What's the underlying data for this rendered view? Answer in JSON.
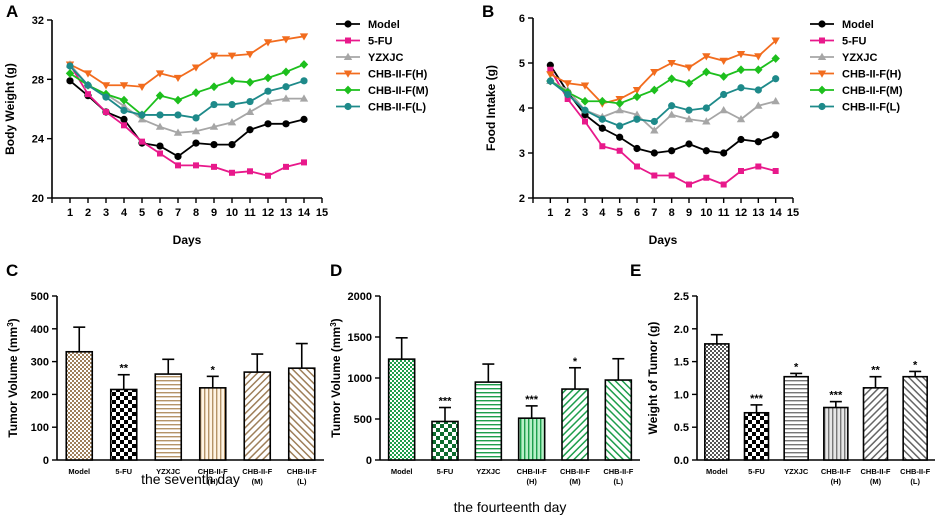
{
  "chart_data": [
    {
      "panel": "A",
      "type": "line",
      "xlabel": "Days",
      "ylabel": "Body Weight (g)",
      "xlim": [
        0,
        15
      ],
      "ylim": [
        20,
        32
      ],
      "xticks": [
        0,
        1,
        2,
        3,
        4,
        5,
        6,
        7,
        8,
        9,
        10,
        11,
        12,
        13,
        14,
        15
      ],
      "yticks": [
        20,
        24,
        28,
        32
      ],
      "x": [
        1,
        2,
        3,
        4,
        5,
        6,
        7,
        8,
        9,
        10,
        11,
        12,
        13,
        14
      ],
      "series": [
        {
          "name": "Model",
          "color": "#000000",
          "marker": "circle",
          "values": [
            27.9,
            26.9,
            25.8,
            25.3,
            23.7,
            23.5,
            22.8,
            23.7,
            23.6,
            23.6,
            24.6,
            25.0,
            25.0,
            25.3
          ]
        },
        {
          "name": "5-FU",
          "color": "#e8198b",
          "marker": "square",
          "values": [
            29.0,
            27.0,
            25.8,
            24.9,
            23.8,
            23.0,
            22.2,
            22.2,
            22.1,
            21.7,
            21.8,
            21.5,
            22.1,
            22.4
          ]
        },
        {
          "name": "YZXJC",
          "color": "#a6a6a6",
          "marker": "triangle-up",
          "values": [
            29.0,
            27.6,
            27.0,
            26.2,
            25.3,
            24.8,
            24.4,
            24.5,
            24.8,
            25.1,
            25.8,
            26.5,
            26.7,
            26.7
          ]
        },
        {
          "name": "CHB-II-F(H)",
          "color": "#f26c1e",
          "marker": "triangle-down",
          "values": [
            29.0,
            28.4,
            27.6,
            27.6,
            27.5,
            28.4,
            28.1,
            28.8,
            29.6,
            29.6,
            29.7,
            30.5,
            30.7,
            30.9
          ]
        },
        {
          "name": "CHB-II-F(M)",
          "color": "#1dbf1d",
          "marker": "diamond",
          "values": [
            28.4,
            27.6,
            27.0,
            26.6,
            25.6,
            26.9,
            26.6,
            27.1,
            27.5,
            27.9,
            27.8,
            28.1,
            28.5,
            29.0
          ]
        },
        {
          "name": "CHB-II-F(L)",
          "color": "#1e8a8a",
          "marker": "circle",
          "values": [
            28.9,
            27.6,
            26.8,
            25.9,
            25.6,
            25.6,
            25.6,
            25.4,
            26.3,
            26.3,
            26.5,
            27.2,
            27.5,
            27.9
          ]
        }
      ],
      "legend": "top-right"
    },
    {
      "panel": "B",
      "type": "line",
      "xlabel": "Days",
      "ylabel": "Food Intake (g)",
      "xlim": [
        0,
        15
      ],
      "ylim": [
        2,
        6
      ],
      "xticks": [
        0,
        1,
        2,
        3,
        4,
        5,
        6,
        7,
        8,
        9,
        10,
        11,
        12,
        13,
        14,
        15
      ],
      "yticks": [
        2,
        3,
        4,
        5,
        6
      ],
      "x": [
        1,
        2,
        3,
        4,
        5,
        6,
        7,
        8,
        9,
        10,
        11,
        12,
        13,
        14
      ],
      "series": [
        {
          "name": "Model",
          "color": "#000000",
          "marker": "circle",
          "values": [
            4.95,
            4.35,
            3.85,
            3.55,
            3.35,
            3.1,
            3.0,
            3.05,
            3.2,
            3.05,
            3.0,
            3.3,
            3.25,
            3.4
          ]
        },
        {
          "name": "5-FU",
          "color": "#e8198b",
          "marker": "square",
          "values": [
            4.85,
            4.2,
            3.7,
            3.15,
            3.05,
            2.7,
            2.5,
            2.5,
            2.3,
            2.45,
            2.3,
            2.6,
            2.7,
            2.6
          ]
        },
        {
          "name": "YZXJC",
          "color": "#a6a6a6",
          "marker": "triangle-up",
          "values": [
            4.6,
            4.4,
            3.95,
            3.8,
            3.95,
            3.85,
            3.5,
            3.85,
            3.75,
            3.7,
            3.95,
            3.75,
            4.05,
            4.15
          ]
        },
        {
          "name": "CHB-II-F(H)",
          "color": "#f26c1e",
          "marker": "triangle-down",
          "values": [
            4.75,
            4.55,
            4.5,
            4.1,
            4.2,
            4.4,
            4.8,
            5.0,
            4.9,
            5.15,
            5.05,
            5.2,
            5.15,
            5.5
          ]
        },
        {
          "name": "CHB-II-F(M)",
          "color": "#1dbf1d",
          "marker": "diamond",
          "values": [
            4.6,
            4.35,
            4.15,
            4.15,
            4.1,
            4.25,
            4.4,
            4.65,
            4.55,
            4.8,
            4.7,
            4.85,
            4.85,
            5.1
          ]
        },
        {
          "name": "CHB-II-F(L)",
          "color": "#1e8a8a",
          "marker": "circle",
          "values": [
            4.6,
            4.3,
            3.95,
            3.75,
            3.6,
            3.75,
            3.7,
            4.05,
            3.95,
            4.0,
            4.3,
            4.45,
            4.4,
            4.65
          ]
        }
      ],
      "legend": "top-right"
    },
    {
      "panel": "C",
      "type": "bar",
      "ylabel": "Tumor Volume (mm³)",
      "caption": "the seventh day",
      "ylim": [
        0,
        500
      ],
      "yticks": [
        0,
        100,
        200,
        300,
        400,
        500
      ],
      "categories": [
        "Model",
        "5-FU",
        "YZXJC",
        "CHB-II-F (H)",
        "CHB-II-F (M)",
        "CHB-II-F (L)"
      ],
      "category_lines": [
        [
          "Model"
        ],
        [
          "5-FU"
        ],
        [
          "YZXJC"
        ],
        [
          "CHB-II-F",
          "(H)"
        ],
        [
          "CHB-II-F",
          "(M)"
        ],
        [
          "CHB-II-F",
          "(L)"
        ]
      ],
      "values": [
        330,
        215,
        262,
        220,
        268,
        280
      ],
      "errors": [
        75,
        45,
        45,
        35,
        55,
        75
      ],
      "significance": [
        "",
        "**",
        "",
        "*",
        "",
        ""
      ],
      "bar_color": "#d9b893",
      "patterns": [
        "checker-fine",
        "checker",
        "hlines",
        "vlines",
        "diag-rev",
        "diag"
      ]
    },
    {
      "panel": "D",
      "type": "bar",
      "ylabel": "Tumor Volume (mm³)",
      "caption": "the fourteenth day",
      "ylim": [
        0,
        2000
      ],
      "yticks": [
        0,
        500,
        1000,
        1500,
        2000
      ],
      "categories": [
        "Model",
        "5-FU",
        "YZXJC",
        "CHB-II-F (H)",
        "CHB-II-F (M)",
        "CHB-II-F (L)"
      ],
      "category_lines": [
        [
          "Model"
        ],
        [
          "5-FU"
        ],
        [
          "YZXJC"
        ],
        [
          "CHB-II-F",
          "(H)"
        ],
        [
          "CHB-II-F",
          "(M)"
        ],
        [
          "CHB-II-F",
          "(L)"
        ]
      ],
      "values": [
        1230,
        470,
        950,
        510,
        865,
        975
      ],
      "errors": [
        260,
        170,
        220,
        150,
        260,
        260
      ],
      "significance": [
        "",
        "***",
        "",
        "***",
        "*",
        ""
      ],
      "bar_color": "#3ec96a",
      "patterns": [
        "checker-fine",
        "checker",
        "hlines",
        "vlines",
        "diag-rev",
        "diag"
      ]
    },
    {
      "panel": "E",
      "type": "bar",
      "ylabel": "Weight of Tumor (g)",
      "ylim": [
        0,
        2.5
      ],
      "yticks": [
        0.0,
        0.5,
        1.0,
        1.5,
        2.0,
        2.5
      ],
      "categories": [
        "Model",
        "5-FU",
        "YZXJC",
        "CHB-II-F (H)",
        "CHB-II-F (M)",
        "CHB-II-F (L)"
      ],
      "category_lines": [
        [
          "Model"
        ],
        [
          "5-FU"
        ],
        [
          "YZXJC"
        ],
        [
          "CHB-II-F",
          "(H)"
        ],
        [
          "CHB-II-F",
          "(M)"
        ],
        [
          "CHB-II-F",
          "(L)"
        ]
      ],
      "values": [
        1.77,
        0.72,
        1.27,
        0.8,
        1.1,
        1.27
      ],
      "errors": [
        0.14,
        0.12,
        0.05,
        0.09,
        0.17,
        0.08
      ],
      "significance": [
        "",
        "***",
        "*",
        "***",
        "**",
        "*"
      ],
      "bar_color": "#c8c8c8",
      "patterns": [
        "checker-fine",
        "checker",
        "hlines",
        "vlines",
        "diag-rev",
        "diag"
      ]
    }
  ]
}
